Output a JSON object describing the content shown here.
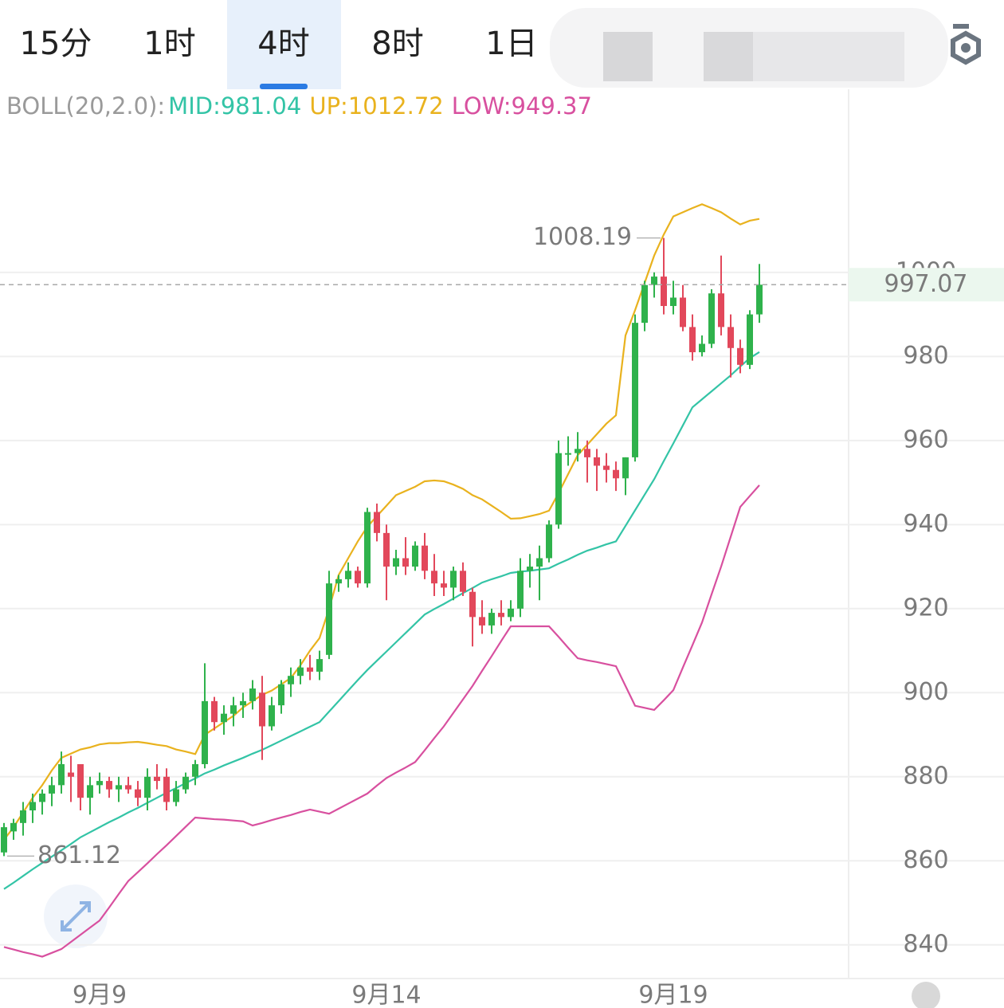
{
  "tabs": [
    "15分",
    "1时",
    "4时",
    "8时",
    "1日"
  ],
  "selected_tab": 2,
  "chart_data": {
    "type": "candlestick",
    "indicator": "BOLL(20,2.0):",
    "categories": [
      null,
      null,
      null,
      null,
      null,
      null,
      null,
      null,
      null,
      null,
      "9月9",
      null,
      null,
      null,
      null,
      null,
      null,
      null,
      null,
      null,
      null,
      null,
      null,
      null,
      null,
      null,
      null,
      null,
      null,
      null,
      null,
      null,
      null,
      null,
      null,
      null,
      null,
      null,
      null,
      null,
      "9月14",
      null,
      null,
      null,
      null,
      null,
      null,
      null,
      null,
      null,
      null,
      null,
      null,
      null,
      null,
      null,
      null,
      null,
      null,
      null,
      null,
      null,
      null,
      null,
      null,
      null,
      null,
      null,
      null,
      null,
      "9月19",
      null,
      null,
      null,
      null,
      null,
      null,
      null,
      null,
      null
    ],
    "open": [
      862,
      867,
      869,
      872,
      874,
      876,
      878,
      881,
      883,
      875,
      878,
      879,
      877,
      878,
      877,
      875,
      880,
      880,
      874,
      877,
      880,
      883,
      898,
      893,
      895,
      897,
      898,
      900,
      892,
      897,
      902,
      904,
      906,
      905,
      909,
      926,
      927,
      929,
      926,
      943,
      938,
      930,
      932,
      930,
      935,
      929,
      926,
      925,
      929,
      924,
      918,
      916,
      919,
      918,
      920,
      929,
      930,
      932,
      940,
      957,
      957,
      958,
      956,
      954,
      953,
      951,
      956,
      988,
      997,
      999,
      992,
      994,
      987,
      981,
      983,
      995,
      987,
      982,
      978,
      990
    ],
    "high": [
      869,
      870,
      874,
      876,
      877,
      880,
      886,
      885,
      883,
      880,
      881,
      880,
      880,
      880,
      879,
      882,
      883,
      882,
      879,
      881,
      884,
      907,
      899,
      897,
      899,
      900,
      903,
      904,
      899,
      903,
      906,
      908,
      909,
      910,
      929,
      928,
      931,
      930,
      944,
      945,
      940,
      934,
      937,
      936,
      938,
      933,
      929,
      930,
      931,
      925,
      922,
      920,
      922,
      922,
      932,
      933,
      935,
      941,
      960,
      961,
      962,
      960,
      958,
      957,
      955,
      956,
      990,
      998,
      1000,
      1008.19,
      998,
      997,
      990,
      985,
      996,
      1004,
      990,
      984,
      991,
      1002
    ],
    "low": [
      861.12,
      865,
      866,
      869,
      871,
      873,
      876,
      874,
      872,
      871,
      876,
      875,
      874,
      876,
      873,
      872,
      877,
      872,
      873,
      876,
      878,
      882,
      891,
      890,
      892,
      894,
      896,
      884,
      891,
      895,
      899,
      902,
      903,
      903,
      908,
      924,
      925,
      925,
      925,
      936,
      922,
      928,
      928,
      929,
      927,
      923,
      923,
      922,
      923,
      911,
      914,
      914,
      916,
      917,
      918,
      925,
      922,
      931,
      939,
      954,
      955,
      950,
      948,
      950,
      948,
      947,
      955,
      986,
      994,
      990,
      990,
      986,
      979,
      980,
      982,
      985,
      975,
      976,
      977,
      988
    ],
    "close": [
      868,
      869,
      872,
      874,
      876,
      878,
      883,
      880,
      875,
      878,
      879,
      877,
      878,
      877,
      875,
      880,
      879,
      874,
      877,
      880,
      883,
      898,
      893,
      895,
      897,
      898,
      901,
      892,
      897,
      902,
      904,
      906,
      905,
      908,
      926,
      927,
      929,
      926,
      943,
      938,
      930,
      932,
      930,
      935,
      929,
      926,
      925,
      929,
      924,
      918,
      916,
      919,
      918,
      920,
      929,
      930,
      932,
      940,
      957,
      957,
      958,
      956,
      954,
      953,
      951,
      956,
      988,
      997,
      999,
      992,
      994,
      987,
      981,
      983,
      995,
      987,
      982,
      978,
      990,
      997.07
    ],
    "up_color": "#2fb24c",
    "down_color": "#e2485b",
    "series": [
      {
        "name": "MID:",
        "color": "#33c4a6",
        "values": [
          853.3,
          854.8,
          856.4,
          858,
          859.5,
          861,
          862.5,
          864,
          865.6,
          866.8,
          868,
          869.2,
          870.3,
          871.5,
          872.6,
          873.8,
          875,
          876.2,
          877.3,
          878.5,
          879.6,
          880.8,
          881.7,
          882.7,
          883.6,
          884.5,
          885.5,
          886.4,
          887.5,
          888.6,
          889.7,
          890.8,
          891.9,
          893,
          895.5,
          898,
          900.5,
          903,
          905.4,
          907.6,
          909.8,
          912,
          914.2,
          916.4,
          918.6,
          919.9,
          921.1,
          922.4,
          923.7,
          924.9,
          926.2,
          927,
          927.7,
          928.5,
          928.8,
          929,
          929.3,
          929.6,
          930.7,
          931.7,
          932.8,
          933.8,
          934.5,
          935.3,
          936,
          939.7,
          943.4,
          947.1,
          950.8,
          955.1,
          959.3,
          963.6,
          967.9,
          969.8,
          971.7,
          973.6,
          975.5,
          977.6,
          979.6,
          981.04
        ]
      },
      {
        "name": "UP:",
        "color": "#e9b21e",
        "values": [
          865,
          868,
          871.5,
          875,
          878,
          881.5,
          884.5,
          885.5,
          886.5,
          887,
          887.7,
          888,
          888,
          888.2,
          888.3,
          888,
          887.6,
          887.3,
          886.5,
          886,
          885.4,
          890,
          891.5,
          893,
          894.5,
          896.5,
          898,
          899.5,
          900.5,
          902,
          903.5,
          906.5,
          910,
          913,
          920,
          928,
          932,
          936,
          939.5,
          942,
          944.5,
          947,
          948,
          949,
          950.3,
          950.5,
          950.3,
          949.5,
          948.5,
          947,
          946,
          944.5,
          943,
          941.4,
          941.5,
          942,
          942.5,
          943.3,
          947.5,
          952,
          956.5,
          959,
          961.5,
          964,
          966,
          985,
          991,
          997.5,
          1004,
          1009,
          1013.3,
          1014.3,
          1015.3,
          1016.2,
          1015.3,
          1014.3,
          1012.8,
          1011.4,
          1012.3,
          1012.72
        ]
      },
      {
        "name": "LOW:",
        "color": "#d8509f",
        "values": [
          839.5,
          838.9,
          838.3,
          837.8,
          837.2,
          838.1,
          839,
          840.7,
          842.4,
          844.1,
          845.8,
          848.9,
          852.1,
          855.2,
          857.3,
          859.4,
          861.6,
          863.7,
          865.9,
          868.1,
          870.3,
          870.1,
          869.9,
          869.8,
          869.6,
          869.4,
          868.4,
          869,
          869.7,
          870.3,
          870.9,
          871.6,
          872.2,
          871.7,
          871.2,
          872.4,
          873.6,
          874.8,
          876,
          877.9,
          879.7,
          881,
          882.2,
          883.5,
          886.3,
          889.2,
          892,
          895.2,
          898.4,
          901.6,
          905.2,
          908.7,
          912.3,
          915.8,
          915.8,
          915.8,
          915.8,
          915.8,
          913.3,
          910.7,
          908.2,
          907.7,
          907.3,
          906.8,
          906.3,
          901.6,
          896.9,
          896.4,
          895.9,
          898.2,
          900.6,
          906,
          911.3,
          916.7,
          923.4,
          930,
          937.1,
          944.2,
          946.8,
          949.37
        ]
      }
    ],
    "ylim": [
      832,
      1043
    ],
    "yticks": [
      840,
      860,
      880,
      900,
      920,
      940,
      960,
      980,
      1000
    ],
    "grid": true
  }
}
